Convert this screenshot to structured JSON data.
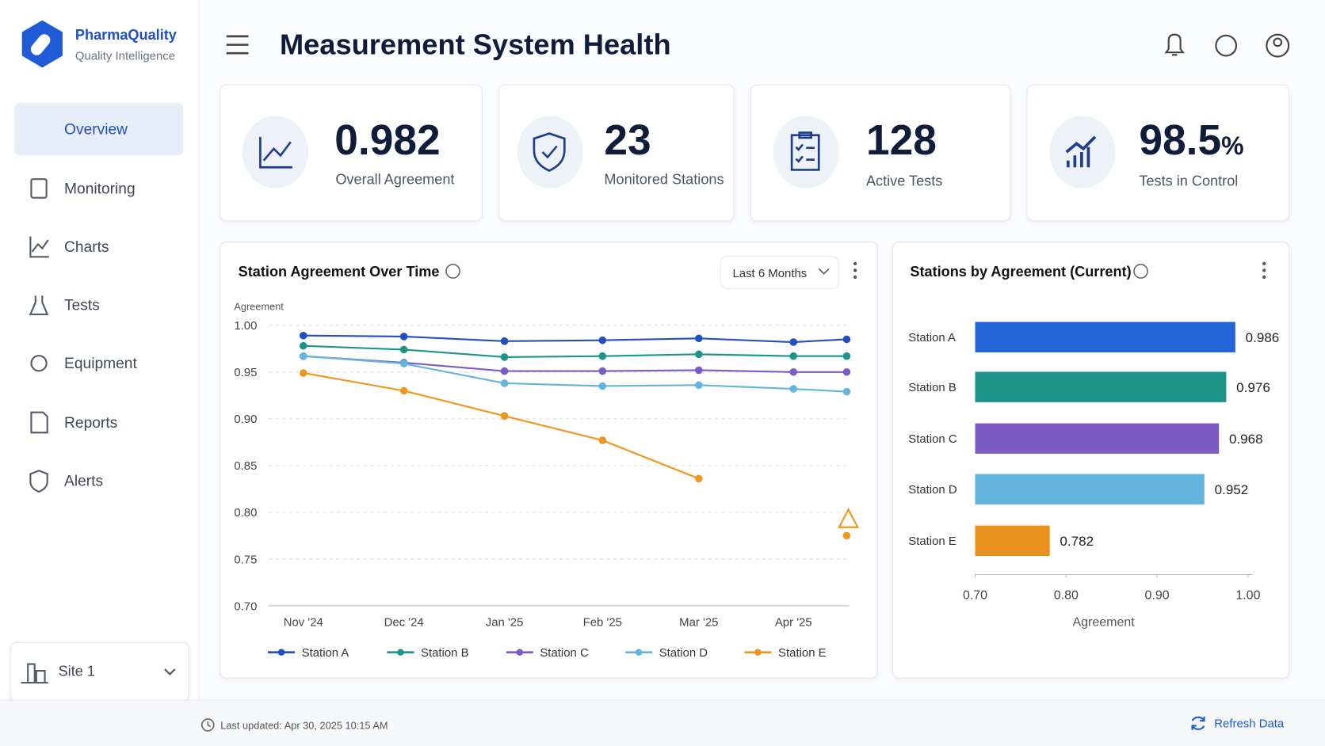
{
  "brand": {
    "name": "PharmaQuality",
    "tagline": "Quality Intelligence"
  },
  "nav": [
    "Overview",
    "Monitoring",
    "Charts",
    "Tests",
    "Equipment",
    "Reports",
    "Alerts"
  ],
  "site": "Site 1",
  "header": {
    "title": "Measurement System Health"
  },
  "kpis": [
    {
      "value": "0.982",
      "label": "Overall Agreement"
    },
    {
      "value": "23",
      "label": "Monitored Stations"
    },
    {
      "value": "128",
      "label": "Active Tests"
    },
    {
      "value": "98.5",
      "unit": "%",
      "label": "Tests in Control"
    }
  ],
  "chart_data": [
    {
      "type": "line",
      "title": "Station Agreement Over Time",
      "filter": "Last 6 Months",
      "y_label": "Agreement",
      "categories": [
        "Nov '24",
        "Dec '24",
        "Jan '25",
        "Feb '25",
        "Mar '25",
        "Apr '25",
        null
      ],
      "series": [
        {
          "name": "Station A",
          "color": "#1f4fc1",
          "values": [
            0.989,
            0.988,
            0.983,
            0.984,
            0.986,
            0.982,
            0.985
          ]
        },
        {
          "name": "Station B",
          "color": "#1c9488",
          "values": [
            0.978,
            0.974,
            0.966,
            0.967,
            0.969,
            0.967,
            0.967
          ]
        },
        {
          "name": "Station C",
          "color": "#7b5bc6",
          "values": [
            0.967,
            0.96,
            0.951,
            0.951,
            0.952,
            0.95,
            0.95
          ]
        },
        {
          "name": "Station D",
          "color": "#64b5de",
          "values": [
            0.967,
            0.959,
            0.938,
            0.935,
            0.936,
            0.932,
            0.929
          ]
        },
        {
          "name": "Station E",
          "color": "#f0961f",
          "values": [
            0.949,
            0.93,
            0.903,
            0.877,
            0.836,
            null,
            0.775
          ]
        }
      ],
      "ylim": [
        0.7,
        1.0
      ],
      "yticks": [
        {
          "value": 0.7,
          "label": "0.70"
        },
        {
          "value": 0.75,
          "label": "0.75"
        },
        {
          "value": 0.8,
          "label": "0.80"
        },
        {
          "value": 0.85,
          "label": "0.85"
        },
        {
          "value": 0.9,
          "label": "0.90"
        },
        {
          "value": 0.95,
          "label": "0.95"
        },
        {
          "value": 1.0,
          "label": "1.00"
        }
      ],
      "grid": true
    },
    {
      "type": "hbar",
      "title": "Stations by Agreement (Current)",
      "x_label": "Agreement",
      "categories": [
        "Station A",
        "Station B",
        "Station C",
        "Station D",
        "Station E"
      ],
      "values": [
        0.986,
        0.976,
        0.968,
        0.952,
        0.782
      ],
      "colors": [
        "#2563d9",
        "#1e9488",
        "#7c5cc4",
        "#62b4dc",
        "#e8921d"
      ],
      "xlim": [
        0.7,
        1.0
      ],
      "xticks": [
        {
          "value": 0.7,
          "label": "0.70"
        },
        {
          "value": 0.8,
          "label": "0.80"
        },
        {
          "value": 0.9,
          "label": "0.90"
        },
        {
          "value": 1.0,
          "label": "1.00"
        }
      ]
    }
  ],
  "footer": {
    "updated": "Last updated: Apr 30, 2025 10:15 AM",
    "refresh": "Refresh Data"
  }
}
